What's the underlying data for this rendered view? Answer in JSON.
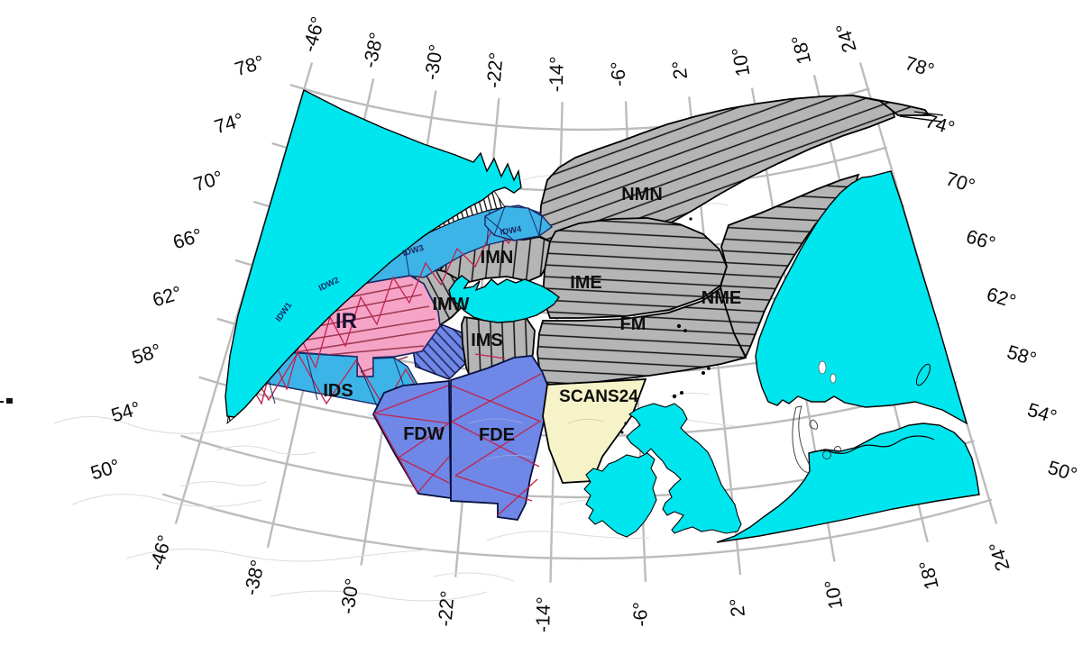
{
  "map": {
    "colors": {
      "cyan": "#00e6ee",
      "gray": "#b5b5b5",
      "pink": "#f6a3c8",
      "skyblue": "#3db4e8",
      "blue": "#6f87e6",
      "yellow": "#f7f3c9",
      "graticule": "#bcbcbc",
      "contour": "#dcdcdc",
      "tred": "#c2224c",
      "maroon": "#a03b52",
      "navy": "#1c2a66"
    },
    "blocks": [
      {
        "id": "NMN",
        "label": "NMN"
      },
      {
        "id": "IMN",
        "label": "IMN"
      },
      {
        "id": "IME",
        "label": "IME"
      },
      {
        "id": "NME",
        "label": "NME"
      },
      {
        "id": "FM",
        "label": "FM"
      },
      {
        "id": "IMW",
        "label": "IMW"
      },
      {
        "id": "IMS",
        "label": "IMS"
      },
      {
        "id": "IR",
        "label": "IR"
      },
      {
        "id": "IDS",
        "label": "IDS"
      },
      {
        "id": "FDW",
        "label": "FDW"
      },
      {
        "id": "FDE",
        "label": "FDE"
      },
      {
        "id": "SCANS24",
        "label": "SCANS24"
      }
    ],
    "idw_blocks": [
      {
        "id": "IDW1",
        "label": "IDW1"
      },
      {
        "id": "IDW2",
        "label": "IDW2"
      },
      {
        "id": "IDW3",
        "label": "IDW3"
      },
      {
        "id": "IDW4",
        "label": "IDW4"
      }
    ],
    "axis": {
      "top": [
        {
          "lon": -46,
          "label": "-46°"
        },
        {
          "lon": -38,
          "label": "-38°"
        },
        {
          "lon": -30,
          "label": "-30°"
        },
        {
          "lon": -22,
          "label": "-22°"
        },
        {
          "lon": -14,
          "label": "-14°"
        },
        {
          "lon": -6,
          "label": "-6°"
        },
        {
          "lon": 2,
          "label": "2°"
        },
        {
          "lon": 10,
          "label": "10°"
        },
        {
          "lon": 18,
          "label": "18°"
        },
        {
          "lon": 24,
          "label": "24°"
        }
      ],
      "bottom": [
        {
          "lon": -46,
          "label": "-46°"
        },
        {
          "lon": -38,
          "label": "-38°"
        },
        {
          "lon": -30,
          "label": "-30°"
        },
        {
          "lon": -22,
          "label": "-22°"
        },
        {
          "lon": -14,
          "label": "-14°"
        },
        {
          "lon": -6,
          "label": "-6°"
        },
        {
          "lon": 2,
          "label": "2°"
        },
        {
          "lon": 10,
          "label": "10°"
        },
        {
          "lon": 18,
          "label": "18°"
        },
        {
          "lon": 24,
          "label": "24°"
        }
      ],
      "left": [
        {
          "lat": 78,
          "label": "78°"
        },
        {
          "lat": 74,
          "label": "74°"
        },
        {
          "lat": 70,
          "label": "70°"
        },
        {
          "lat": 66,
          "label": "66°"
        },
        {
          "lat": 62,
          "label": "62°"
        },
        {
          "lat": 58,
          "label": "58°"
        },
        {
          "lat": 54,
          "label": "54°"
        },
        {
          "lat": 50,
          "label": "50°"
        }
      ],
      "right": [
        {
          "lat": 78,
          "label": "78°"
        },
        {
          "lat": 74,
          "label": "74°"
        },
        {
          "lat": 70,
          "label": "70°"
        },
        {
          "lat": 66,
          "label": "66°"
        },
        {
          "lat": 62,
          "label": "62°"
        },
        {
          "lat": 58,
          "label": "58°"
        },
        {
          "lat": 54,
          "label": "54°"
        },
        {
          "lat": 50,
          "label": "50°"
        }
      ]
    }
  }
}
